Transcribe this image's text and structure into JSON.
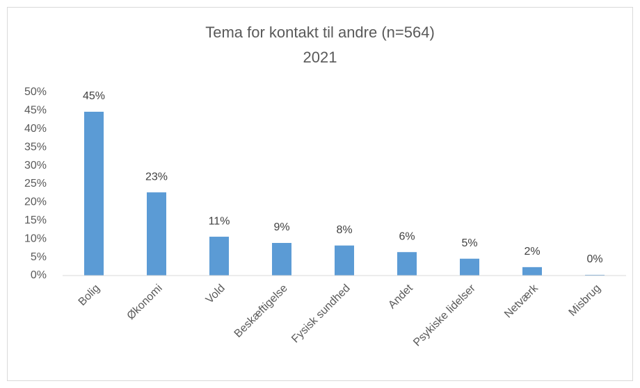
{
  "chart_data": {
    "type": "bar",
    "title": "Tema for kontakt til andre (n=564)",
    "subtitle": "2021",
    "categories": [
      "Bolig",
      "Økonomi",
      "Vold",
      "Beskæftigelse",
      "Fysisk sundhed",
      "Andet",
      "Psykiske lidelser",
      "Netværk",
      "Misbrug"
    ],
    "values": [
      44.7,
      22.7,
      10.6,
      8.9,
      8.2,
      6.4,
      4.6,
      2.3,
      0.2
    ],
    "value_labels": [
      "45%",
      "23%",
      "11%",
      "9%",
      "8%",
      "6%",
      "5%",
      "2%",
      "0%"
    ],
    "color": "#5b9bd5",
    "ylim": [
      0,
      50
    ],
    "yticks": [
      {
        "value": 0,
        "label": "0%"
      },
      {
        "value": 5,
        "label": "5%"
      },
      {
        "value": 10,
        "label": "10%"
      },
      {
        "value": 15,
        "label": "15%"
      },
      {
        "value": 20,
        "label": "20%"
      },
      {
        "value": 25,
        "label": "25%"
      },
      {
        "value": 30,
        "label": "30%"
      },
      {
        "value": 35,
        "label": "35%"
      },
      {
        "value": 40,
        "label": "40%"
      },
      {
        "value": 45,
        "label": "45%"
      },
      {
        "value": 50,
        "label": "50%"
      }
    ],
    "grid": false
  }
}
